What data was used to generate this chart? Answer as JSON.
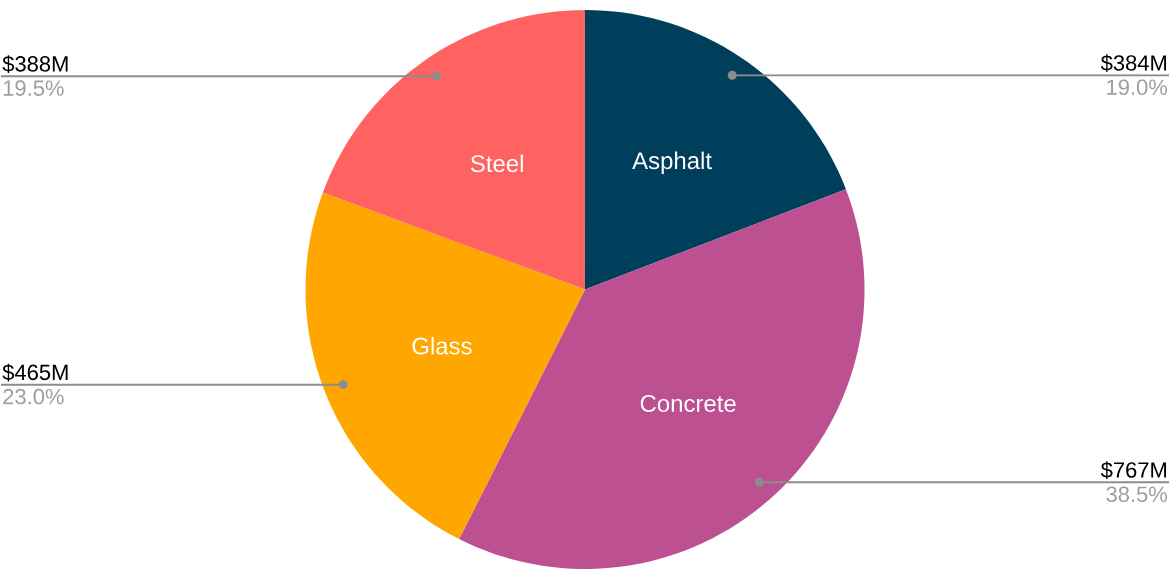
{
  "chart_data": {
    "type": "pie",
    "categories": [
      "Asphalt",
      "Concrete",
      "Glass",
      "Steel"
    ],
    "values": [
      384,
      767,
      465,
      388
    ],
    "colors": [
      "#003f5c",
      "#bc5090",
      "#ffa600",
      "#ff6361"
    ],
    "value_labels": [
      "$384M",
      "$767M",
      "$465M",
      "$388M"
    ],
    "annotations": [
      "19.0%",
      "38.5%",
      "23.0%",
      "19.5%"
    ]
  }
}
